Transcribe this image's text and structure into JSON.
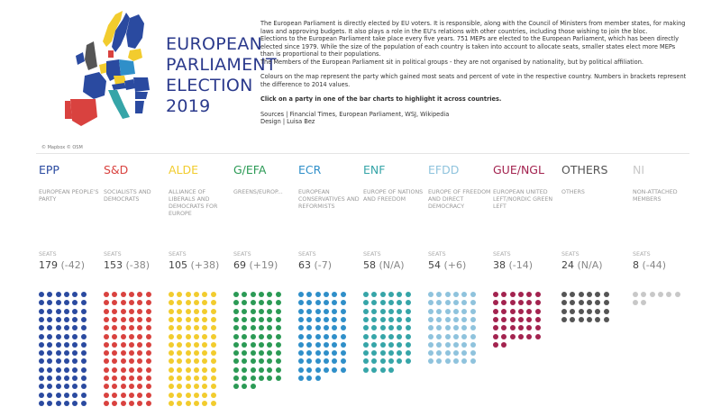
{
  "header": {
    "title_lines": [
      "EUROPEAN",
      "PARLIAMENT",
      "ELECTION",
      "2019"
    ],
    "map_attribution": "© Mapbox © OSM",
    "description": [
      "The European Parliament is directly elected by EU voters. It is responsible, along with the Council of Ministers from member states, for making laws and approving budgets. It also plays a role in the EU's relations with other countries, including those wishing to join the bloc.",
      " Elections to the European Parliament take place every five years. 751 MEPs are elected to the European Parliament, which has been directly elected since 1979. While the size of the population of each country is taken into account to allocate seats, smaller states elect more MEPs than is proportional to their populations.",
      "The Members of the European Parliament sit in political groups - they are not organised by nationality, but by political affiliation."
    ],
    "map_note": "Colours on the map represent the party which gained most seats and percent of vote in the respective country. Numbers in brackets represent the difference to 2014 values.",
    "instruction": "Click on a party in one of the bar charts to highlight it across countries.",
    "sources": "Sources | Financial Times, European Parliament, WSJ, Wikipedia",
    "design": "Design | Luisa Bez"
  },
  "seats_label": "SEATS",
  "parties": [
    {
      "name": "EPP",
      "desc": "EUROPEAN PEOPLE'S PARTY",
      "seats": "179",
      "change": "(-42)",
      "seat_count": 179,
      "color": "#2a4aa0"
    },
    {
      "name": "S&D",
      "desc": "SOCIALISTS AND DEMOCRATS",
      "seats": "153",
      "change": "(-38)",
      "seat_count": 153,
      "color": "#d9423f"
    },
    {
      "name": "ALDE",
      "desc": "ALLIANCE OF LIBERALS AND DEMOCRATS FOR EUROPE",
      "seats": "105",
      "change": "(+38)",
      "seat_count": 105,
      "color": "#f2cc2e"
    },
    {
      "name": "G/EFA",
      "desc": "GREENS/EUROP...",
      "seats": "69",
      "change": "(+19)",
      "seat_count": 69,
      "color": "#2b9a55"
    },
    {
      "name": "ECR",
      "desc": "EUROPEAN CONSERVATIVES AND REFORMISTS",
      "seats": "63",
      "change": "(-7)",
      "seat_count": 63,
      "color": "#2f8fc9"
    },
    {
      "name": "ENF",
      "desc": "EUROPE OF NATIONS AND FREEDOM",
      "seats": "58",
      "change": "(N/A)",
      "seat_count": 58,
      "color": "#36a5a8"
    },
    {
      "name": "EFDD",
      "desc": "EUROPE OF FREEDOM AND DIRECT DEMOCRACY",
      "seats": "54",
      "change": "(+6)",
      "seat_count": 54,
      "color": "#8fc3dd"
    },
    {
      "name": "GUE/NGL",
      "desc": "EUROPEAN UNITED LEFT/NORDIC GREEN LEFT",
      "seats": "38",
      "change": "(-14)",
      "seat_count": 38,
      "color": "#a3234f"
    },
    {
      "name": "OTHERS",
      "desc": "OTHERS",
      "seats": "24",
      "change": "(N/A)",
      "seat_count": 24,
      "color": "#555555"
    },
    {
      "name": "NI",
      "desc": "NON-ATTACHED MEMBERS",
      "seats": "8",
      "change": "(-44)",
      "seat_count": 8,
      "color": "#c8c8c8"
    }
  ]
}
